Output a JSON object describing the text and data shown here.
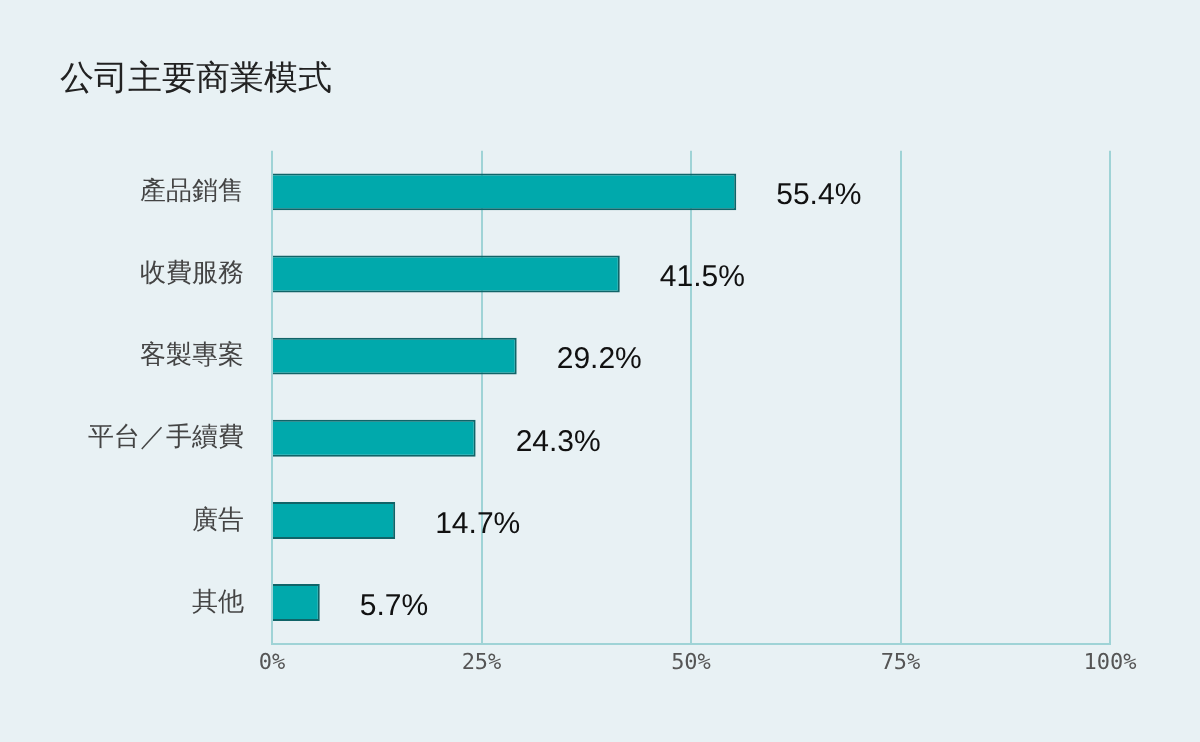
{
  "chart_data": {
    "type": "bar",
    "orientation": "horizontal",
    "title": "公司主要商業模式",
    "categories": [
      "產品銷售",
      "收費服務",
      "客製專案",
      "平台／手續費",
      "廣告",
      "其他"
    ],
    "values": [
      55.4,
      41.5,
      29.2,
      24.3,
      14.7,
      5.7
    ],
    "value_labels": [
      "55.4%",
      "41.5%",
      "29.2%",
      "24.3%",
      "14.7%",
      "5.7%"
    ],
    "color": "#00a9ac",
    "xlim": [
      0,
      100
    ],
    "xticks": [
      {
        "value": 0,
        "label": "0%"
      },
      {
        "value": 25,
        "label": "25%"
      },
      {
        "value": 50,
        "label": "50%"
      },
      {
        "value": 75,
        "label": "75%"
      },
      {
        "value": 100,
        "label": "100%"
      }
    ],
    "grid": "x",
    "legend": false
  }
}
